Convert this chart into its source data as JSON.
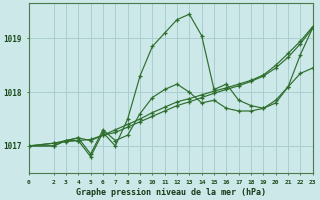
{
  "title": "Graphe pression niveau de la mer (hPa)",
  "background_color": "#cce8e8",
  "grid_color": "#aacece",
  "line_color": "#2d6e2d",
  "xlim": [
    0,
    23
  ],
  "ylim": [
    1016.5,
    1019.65
  ],
  "yticks": [
    1017,
    1018,
    1019
  ],
  "xticks": [
    0,
    2,
    3,
    4,
    5,
    6,
    7,
    8,
    9,
    10,
    11,
    12,
    13,
    14,
    15,
    16,
    17,
    18,
    19,
    20,
    21,
    22,
    23
  ],
  "figsize": [
    3.2,
    2.0
  ],
  "dpi": 100,
  "series": [
    {
      "x": [
        0,
        2,
        3,
        4,
        5,
        6,
        7,
        8,
        9,
        10,
        11,
        12,
        13,
        14,
        15,
        16,
        17,
        18,
        19,
        20,
        21,
        22,
        23
      ],
      "y": [
        1017.0,
        1017.05,
        1017.08,
        1017.1,
        1017.12,
        1017.2,
        1017.25,
        1017.35,
        1017.45,
        1017.55,
        1017.65,
        1017.75,
        1017.82,
        1017.9,
        1017.98,
        1018.05,
        1018.12,
        1018.2,
        1018.3,
        1018.45,
        1018.65,
        1018.9,
        1019.2
      ]
    },
    {
      "x": [
        0,
        2,
        3,
        4,
        5,
        6,
        7,
        8,
        9,
        10,
        11,
        12,
        13,
        14,
        15,
        16,
        17,
        18,
        19,
        20,
        21,
        22,
        23
      ],
      "y": [
        1017.0,
        1017.05,
        1017.1,
        1017.15,
        1017.1,
        1017.2,
        1017.3,
        1017.4,
        1017.5,
        1017.62,
        1017.72,
        1017.82,
        1017.88,
        1017.95,
        1018.02,
        1018.08,
        1018.15,
        1018.22,
        1018.32,
        1018.5,
        1018.72,
        1018.95,
        1019.22
      ]
    },
    {
      "x": [
        0,
        2,
        3,
        4,
        5,
        6,
        7,
        8,
        9,
        10,
        11,
        12,
        13,
        14,
        15,
        16,
        17,
        18,
        19,
        20,
        21,
        22,
        23
      ],
      "y": [
        1017.0,
        1017.0,
        1017.1,
        1017.1,
        1016.8,
        1017.25,
        1017.0,
        1017.5,
        1018.3,
        1018.85,
        1019.1,
        1019.35,
        1019.45,
        1019.05,
        1018.05,
        1018.15,
        1017.85,
        1017.75,
        1017.7,
        1017.8,
        1018.1,
        1018.7,
        1019.2
      ]
    },
    {
      "x": [
        0,
        2,
        3,
        4,
        5,
        6,
        7,
        8,
        9,
        10,
        11,
        12,
        13,
        14,
        15,
        16,
        17,
        18,
        19,
        20,
        21,
        22,
        23
      ],
      "y": [
        1017.0,
        1017.0,
        1017.1,
        1017.15,
        1016.85,
        1017.3,
        1017.1,
        1017.2,
        1017.6,
        1017.9,
        1018.05,
        1018.15,
        1018.0,
        1017.8,
        1017.85,
        1017.7,
        1017.65,
        1017.65,
        1017.7,
        1017.85,
        1018.1,
        1018.35,
        1018.45
      ]
    }
  ]
}
